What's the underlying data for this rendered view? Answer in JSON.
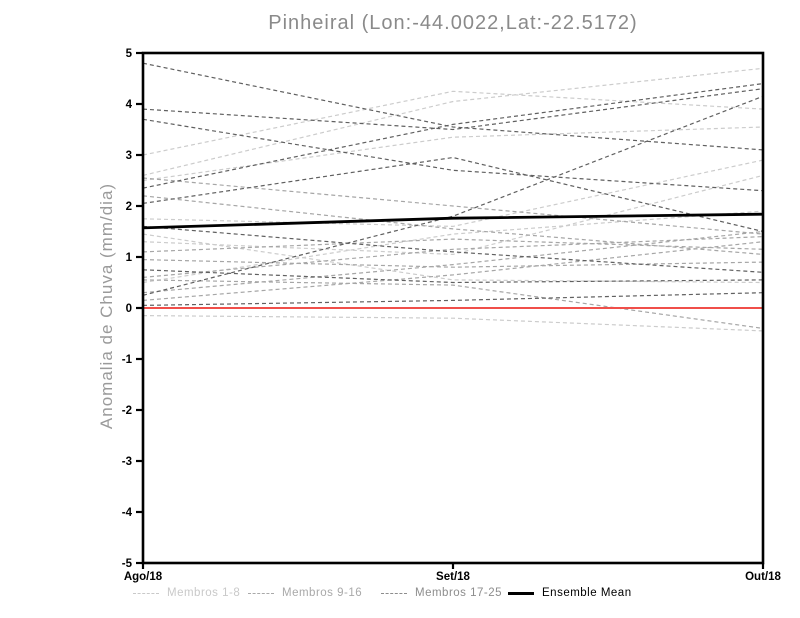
{
  "title": "Pinheiral (Lon:-44.0022,Lat:-22.5172)",
  "chart_data": {
    "type": "line",
    "title": "Pinheiral (Lon:-44.0022,Lat:-22.5172)",
    "ylabel": "Anomalia de Chuva (mm/dia)",
    "x_categories": [
      "Ago/18",
      "Set/18",
      "Out/18"
    ],
    "ylim": [
      -5,
      5
    ],
    "yticks": [
      5,
      4,
      3,
      2,
      1,
      0,
      -1,
      -2,
      -3,
      -4,
      -5
    ],
    "grid": false,
    "legend_position": "bottom",
    "zero_line": {
      "color": "#f04f4a",
      "values": [
        0,
        0,
        0
      ]
    },
    "groups": [
      {
        "name": "Membros 1-8",
        "color": "#cccccc",
        "line_style": "dashed",
        "series": [
          [
            2.6,
            4.05,
            4.7
          ],
          [
            2.5,
            3.35,
            3.55
          ],
          [
            3.0,
            4.25,
            3.9
          ],
          [
            1.75,
            1.6,
            2.9
          ],
          [
            1.3,
            1.05,
            2.6
          ],
          [
            0.5,
            1.45,
            1.9
          ],
          [
            -0.15,
            -0.2,
            -0.45
          ],
          [
            1.45,
            0.55,
            0.5
          ]
        ]
      },
      {
        "name": "Membros 9-16",
        "color": "#a6a6a6",
        "line_style": "dashed",
        "series": [
          [
            2.55,
            2.0,
            1.45
          ],
          [
            0.3,
            0.85,
            1.5
          ],
          [
            0.6,
            1.15,
            1.4
          ],
          [
            2.2,
            1.55,
            1.05
          ],
          [
            0.95,
            0.8,
            0.9
          ],
          [
            0.55,
            0.45,
            -0.4
          ],
          [
            1.1,
            1.35,
            1.15
          ],
          [
            0.15,
            0.65,
            1.3
          ]
        ]
      },
      {
        "name": "Membros 17-25",
        "color": "#606060",
        "line_style": "dashed",
        "series": [
          [
            4.8,
            3.55,
            3.1
          ],
          [
            3.9,
            3.5,
            4.3
          ],
          [
            3.7,
            2.7,
            2.3
          ],
          [
            2.35,
            3.6,
            4.4
          ],
          [
            1.6,
            1.1,
            0.7
          ],
          [
            0.25,
            1.8,
            4.15
          ],
          [
            0.75,
            0.5,
            0.55
          ],
          [
            0.05,
            0.15,
            0.3
          ],
          [
            2.05,
            2.95,
            1.5
          ]
        ]
      }
    ],
    "ensemble_mean": {
      "name": "Ensemble Mean",
      "color": "#000000",
      "values": [
        1.57,
        1.76,
        1.84
      ]
    }
  },
  "legend": {
    "items": [
      {
        "label": "Membros 1-8",
        "color": "#c9c9c9",
        "style": "dashed"
      },
      {
        "label": "Membros 9-16",
        "color": "#a9a9a9",
        "style": "dashed"
      },
      {
        "label": "Membros 17-25",
        "color": "#8d8d8d",
        "style": "dashed"
      },
      {
        "label": "Ensemble Mean",
        "color": "#000000",
        "style": "solid"
      }
    ]
  }
}
